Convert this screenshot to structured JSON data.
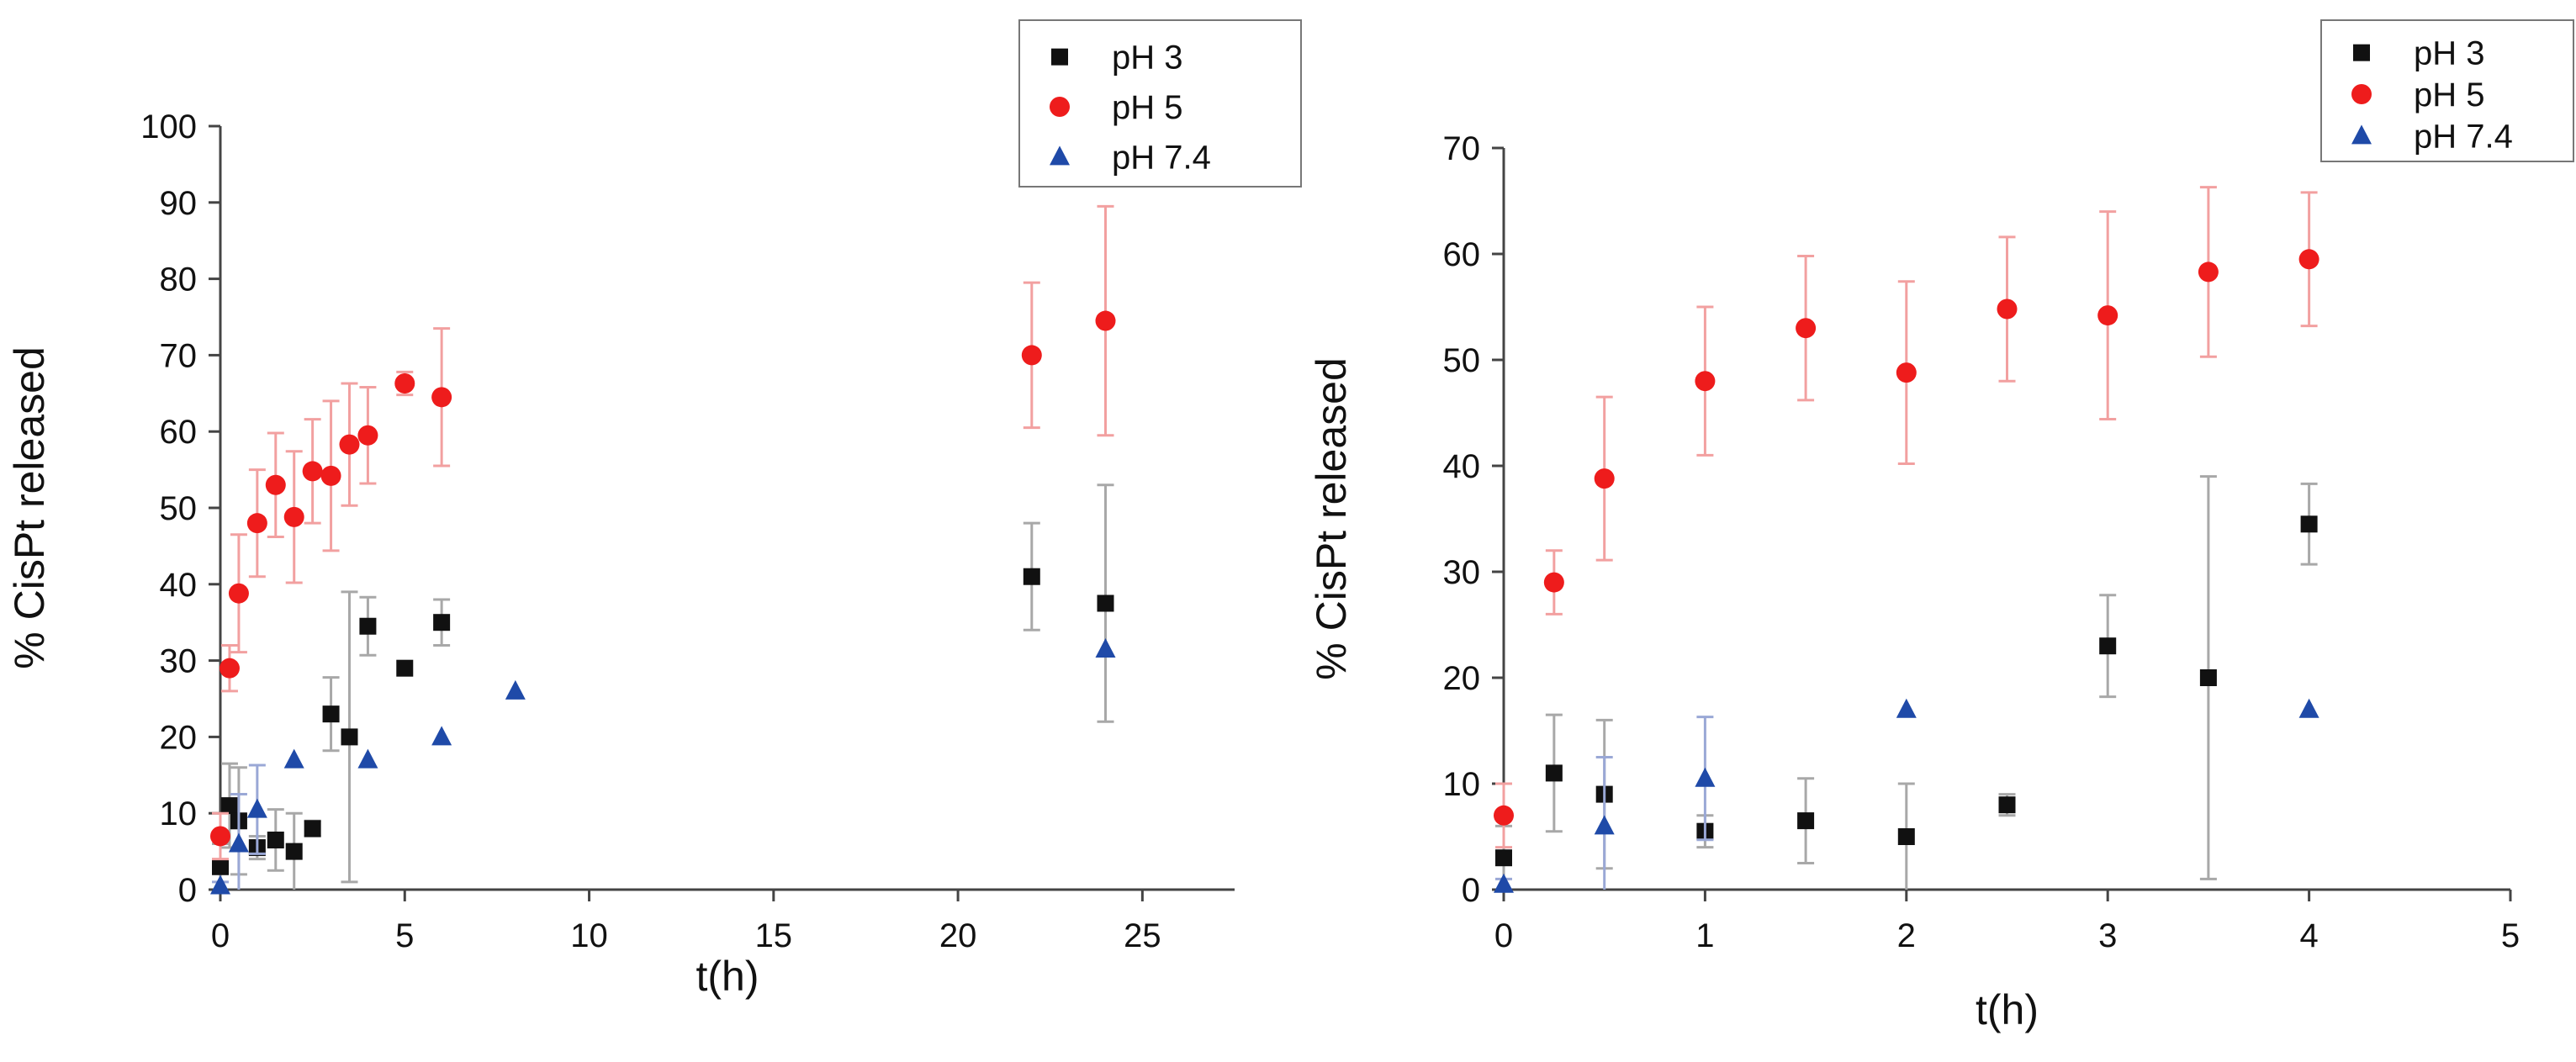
{
  "chart_data": [
    {
      "type": "scatter",
      "title": "",
      "xlabel": "t(h)",
      "ylabel": "% CisPt released",
      "xlim": [
        0,
        27.5
      ],
      "ylim": [
        0,
        100
      ],
      "xticks": [
        0,
        5,
        10,
        15,
        20,
        25
      ],
      "yticks": [
        0,
        10,
        20,
        30,
        40,
        50,
        60,
        70,
        80,
        90,
        100
      ],
      "xtick_labels": [
        "0",
        "5",
        "10",
        "15",
        "20",
        "25"
      ],
      "ytick_labels": [
        "0",
        "10",
        "20",
        "30",
        "40",
        "50",
        "60",
        "70",
        "80",
        "90",
        "100"
      ],
      "grid": false,
      "legend": {
        "position": "top-right",
        "entries": [
          "pH 3",
          "pH 5",
          "pH 7.4"
        ]
      },
      "series": [
        {
          "name": "pH 3",
          "marker": "square",
          "color": "#111111",
          "errcolor": "#a8a8a8",
          "points": [
            [
              0,
              3,
              3
            ],
            [
              0.25,
              11,
              5.5
            ],
            [
              0.5,
              9,
              7
            ],
            [
              1,
              5.5,
              1.5
            ],
            [
              1.5,
              6.5,
              4
            ],
            [
              2,
              5,
              5
            ],
            [
              2.5,
              8,
              1
            ],
            [
              3,
              23,
              4.8
            ],
            [
              3.5,
              20,
              19
            ],
            [
              4,
              34.5,
              3.8
            ],
            [
              5,
              29,
              0
            ],
            [
              6,
              35,
              3
            ],
            [
              22,
              41,
              7
            ],
            [
              24,
              37.5,
              15.5
            ]
          ]
        },
        {
          "name": "pH 5",
          "marker": "circle",
          "color": "#ee1c1c",
          "errcolor": "#f2a0a0",
          "points": [
            [
              0,
              7,
              3
            ],
            [
              0.25,
              29,
              3
            ],
            [
              0.5,
              38.8,
              7.7
            ],
            [
              1,
              48,
              7
            ],
            [
              1.5,
              53,
              6.8
            ],
            [
              2,
              48.8,
              8.6
            ],
            [
              2.5,
              54.8,
              6.8
            ],
            [
              3,
              54.2,
              9.8
            ],
            [
              3.5,
              58.3,
              8
            ],
            [
              4,
              59.5,
              6.3
            ],
            [
              5,
              66.3,
              1.5
            ],
            [
              6,
              64.5,
              9
            ],
            [
              22,
              70,
              9.5
            ],
            [
              24,
              74.5,
              15
            ]
          ]
        },
        {
          "name": "pH 7.4",
          "marker": "triangle",
          "color": "#1f4aa8",
          "errcolor": "#9aa8d6",
          "points": [
            [
              0,
              0.5,
              0.5
            ],
            [
              0.5,
              6,
              6.5
            ],
            [
              1,
              10.5,
              5.8
            ],
            [
              2,
              17,
              0
            ],
            [
              4,
              17,
              0
            ],
            [
              6,
              20,
              0
            ],
            [
              8,
              26,
              0
            ],
            [
              24,
              31.5,
              0
            ]
          ]
        }
      ]
    },
    {
      "type": "scatter",
      "title": "",
      "xlabel": "t(h)",
      "ylabel": "% CisPt released",
      "xlim": [
        0,
        5
      ],
      "ylim": [
        0,
        70
      ],
      "xticks": [
        0,
        1,
        2,
        3,
        4,
        5
      ],
      "yticks": [
        0,
        10,
        20,
        30,
        40,
        50,
        60,
        70
      ],
      "xtick_labels": [
        "0",
        "1",
        "2",
        "3",
        "4",
        "5"
      ],
      "ytick_labels": [
        "0",
        "10",
        "20",
        "30",
        "40",
        "50",
        "60",
        "70"
      ],
      "grid": false,
      "legend": {
        "position": "top-right",
        "entries": [
          "pH 3",
          "pH 5",
          "pH 7.4"
        ]
      },
      "series": [
        {
          "name": "pH 3",
          "marker": "square",
          "color": "#111111",
          "errcolor": "#a8a8a8",
          "points": [
            [
              0,
              3,
              3
            ],
            [
              0.25,
              11,
              5.5
            ],
            [
              0.5,
              9,
              7
            ],
            [
              1,
              5.5,
              1.5
            ],
            [
              1.5,
              6.5,
              4
            ],
            [
              2,
              5,
              5
            ],
            [
              2.5,
              8,
              1
            ],
            [
              3,
              23,
              4.8
            ],
            [
              3.5,
              20,
              19
            ],
            [
              4,
              34.5,
              3.8
            ]
          ]
        },
        {
          "name": "pH 5",
          "marker": "circle",
          "color": "#ee1c1c",
          "errcolor": "#f2a0a0",
          "points": [
            [
              0,
              7,
              3
            ],
            [
              0.25,
              29,
              3
            ],
            [
              0.5,
              38.8,
              7.7
            ],
            [
              1,
              48,
              7
            ],
            [
              1.5,
              53,
              6.8
            ],
            [
              2,
              48.8,
              8.6
            ],
            [
              2.5,
              54.8,
              6.8
            ],
            [
              3,
              54.2,
              9.8
            ],
            [
              3.5,
              58.3,
              8
            ],
            [
              4,
              59.5,
              6.3
            ]
          ]
        },
        {
          "name": "pH 7.4",
          "marker": "triangle",
          "color": "#1f4aa8",
          "errcolor": "#9aa8d6",
          "points": [
            [
              0,
              0.5,
              0.5
            ],
            [
              0.5,
              6,
              6.5
            ],
            [
              1,
              10.5,
              5.8
            ],
            [
              2,
              17,
              0
            ],
            [
              4,
              17,
              0
            ]
          ]
        }
      ]
    }
  ]
}
